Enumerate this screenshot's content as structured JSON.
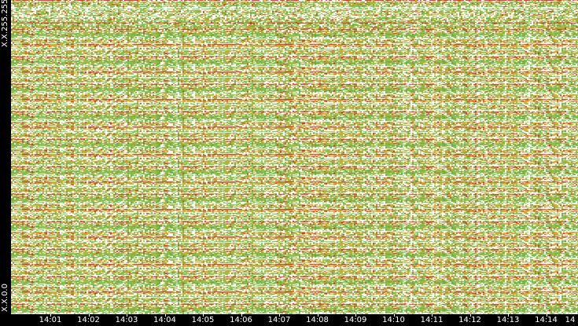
{
  "y_axis": {
    "top_label": "X.X.255.255",
    "bottom_label": "X.X.0.0"
  },
  "x_axis": {
    "ticks": [
      "14:01",
      "14:02",
      "14:03",
      "14:04",
      "14:05",
      "14:06",
      "14:07",
      "14:08",
      "14:09",
      "14:10",
      "14:11",
      "14:12",
      "14:13",
      "14:14",
      "14"
    ]
  },
  "colors": {
    "background": "#ffffff",
    "axis_background": "#000000",
    "low": "#8cc152",
    "medium": "#6aa83a",
    "high": "#f0a020",
    "peak": "#e8201c"
  },
  "chart_data": {
    "type": "heatmap",
    "title": "",
    "xlabel": "",
    "ylabel": "",
    "x": [
      "14:01",
      "14:02",
      "14:03",
      "14:04",
      "14:05",
      "14:06",
      "14:07",
      "14:08",
      "14:09",
      "14:10",
      "14:11",
      "14:12",
      "14:13",
      "14:14",
      "14"
    ],
    "y_range": [
      "X.X.0.0",
      "X.X.255.255"
    ],
    "legend": "none",
    "grid": false
  }
}
